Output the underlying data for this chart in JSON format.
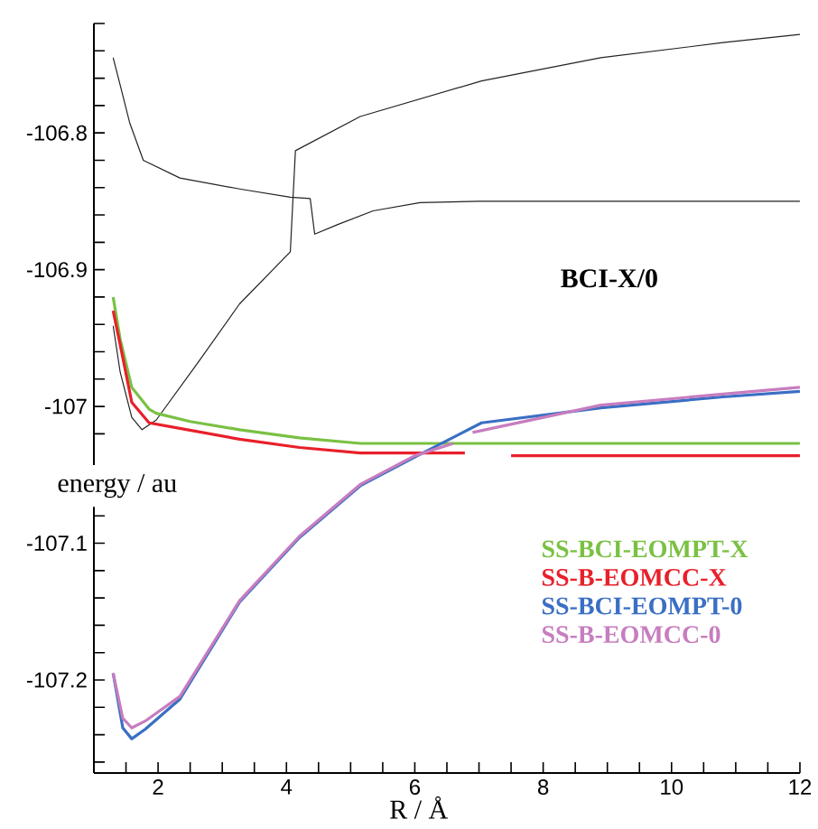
{
  "chart_data": {
    "type": "line",
    "xlabel": "R / Å",
    "ylabel": "energy / au",
    "annotations": [
      "BCI-X/0"
    ],
    "xlim": [
      1,
      12
    ],
    "ylim": [
      -107.268,
      -106.72
    ],
    "xticks": [
      {
        "value": 1.5,
        "label": null
      },
      2,
      {
        "value": 2.5,
        "label": null
      },
      {
        "value": 3,
        "label": null
      },
      {
        "value": 3.5,
        "label": null
      },
      4,
      {
        "value": 4.5,
        "label": null
      },
      {
        "value": 5,
        "label": null
      },
      {
        "value": 5.5,
        "label": null
      },
      6,
      {
        "value": 6.5,
        "label": null
      },
      {
        "value": 7,
        "label": null
      },
      {
        "value": 7.5,
        "label": null
      },
      8,
      {
        "value": 8.5,
        "label": null
      },
      {
        "value": 9,
        "label": null
      },
      {
        "value": 9.5,
        "label": null
      },
      10,
      {
        "value": 10.5,
        "label": null
      },
      {
        "value": 11,
        "label": null
      },
      {
        "value": 11.5,
        "label": null
      },
      12
    ],
    "yticks": [
      {
        "value": -107.26,
        "label": null
      },
      {
        "value": -107.24,
        "label": null
      },
      {
        "value": -107.22,
        "label": null
      },
      -107.2,
      {
        "value": -107.18,
        "label": null
      },
      {
        "value": -107.16,
        "label": null
      },
      {
        "value": -107.14,
        "label": null
      },
      {
        "value": -107.12,
        "label": null
      },
      -107.1,
      {
        "value": -107.08,
        "label": null
      },
      {
        "value": -107.02,
        "label": null
      },
      -107,
      {
        "value": -106.98,
        "label": null
      },
      {
        "value": -106.96,
        "label": null
      },
      {
        "value": -106.94,
        "label": null
      },
      {
        "value": -106.92,
        "label": null
      },
      -106.9,
      {
        "value": -106.88,
        "label": null
      },
      {
        "value": -106.86,
        "label": null
      },
      {
        "value": -106.84,
        "label": null
      },
      {
        "value": -106.82,
        "label": null
      },
      -106.8,
      {
        "value": -106.78,
        "label": null
      },
      {
        "value": -106.76,
        "label": null
      },
      {
        "value": -106.74,
        "label": null
      },
      {
        "value": -106.72,
        "label": null
      }
    ],
    "grid": false,
    "legend": "bottom right",
    "marker": "none",
    "line_style": "solid",
    "series": [
      {
        "color": "#222222",
        "x": [
          1.3,
          1.42,
          1.56,
          1.77,
          2.34,
          3.27,
          4.06,
          4.37,
          4.44,
          4.8,
          5.35,
          6.08,
          7,
          9,
          12
        ],
        "values": [
          -106.745,
          -106.767,
          -106.793,
          -106.82,
          -106.833,
          -106.841,
          -106.847,
          -106.848,
          -106.874,
          -106.867,
          -106.857,
          -106.851,
          -106.85,
          -106.85,
          -106.85
        ]
      },
      {
        "color": "#222222",
        "x": [
          1.3,
          1.41,
          1.59,
          1.75,
          1.97,
          2.62,
          3.27,
          4.06,
          4.14,
          5.15,
          7.04,
          8.9,
          10.8,
          12
        ],
        "values": [
          -106.941,
          -106.975,
          -107.008,
          -107.017,
          -107.01,
          -106.968,
          -106.925,
          -106.887,
          -106.813,
          -106.788,
          -106.762,
          -106.745,
          -106.734,
          -106.728
        ]
      },
      {
        "name": "SS-BCI-EOMPT-X",
        "color": "#7ac143",
        "x": [
          1.3,
          1.41,
          1.59,
          1.86,
          1.97,
          2.5,
          3.27,
          4.2,
          5.15,
          7,
          9,
          12
        ],
        "values": [
          -106.92,
          -106.951,
          -106.986,
          -107.002,
          -107.005,
          -107.011,
          -107.017,
          -107.023,
          -107.027,
          -107.027,
          -107.027,
          -107.027
        ]
      },
      {
        "name": "SS-B-EOMCC-X",
        "color": "#e8202a",
        "x": [
          1.3,
          1.41,
          1.59,
          1.86,
          2.34,
          3.27,
          4.2,
          5.15,
          6.78,
          7.1,
          7.5,
          9,
          12
        ],
        "values": [
          -106.93,
          -106.955,
          -106.997,
          -107.012,
          -107.016,
          -107.024,
          -107.03,
          -107.034,
          -107.034,
          null,
          -107.036,
          -107.036,
          -107.036
        ]
      },
      {
        "name": "SS-BCI-EOMPT-0",
        "color": "#3a6fc4",
        "x": [
          1.3,
          1.45,
          1.59,
          1.8,
          2.34,
          3.27,
          4.2,
          5.15,
          6,
          7.04,
          8.9,
          10.8,
          12
        ],
        "values": [
          -107.195,
          -107.235,
          -107.243,
          -107.236,
          -107.214,
          -107.143,
          -107.096,
          -107.058,
          -107.037,
          -107.012,
          -107.001,
          -106.993,
          -106.989
        ]
      },
      {
        "name": "SS-B-EOMCC-0",
        "color": "#c77dbf",
        "x": [
          1.3,
          1.45,
          1.59,
          1.8,
          2.34,
          3.27,
          4.2,
          5.15,
          6,
          6.6,
          6.75,
          6.9,
          8.9,
          10.8,
          12
        ],
        "values": [
          -107.195,
          -107.228,
          -107.235,
          -107.23,
          -107.212,
          -107.142,
          -107.095,
          -107.057,
          -107.036,
          -107.027,
          null,
          -107.019,
          -106.999,
          -106.991,
          -106.986
        ]
      }
    ]
  }
}
